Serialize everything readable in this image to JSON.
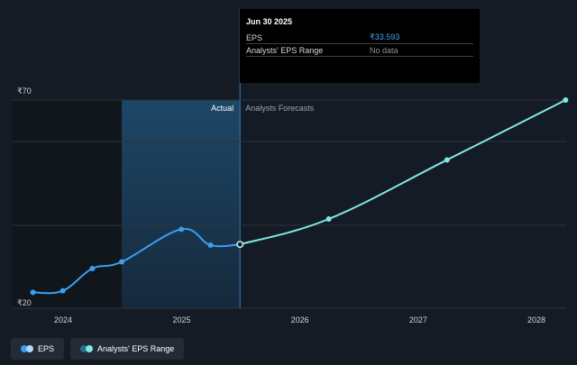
{
  "chart_data": {
    "type": "line",
    "y_tick_labels": [
      "₹70",
      "₹20"
    ],
    "ylim": [
      20,
      70
    ],
    "x_ticks": [
      "2024",
      "2025",
      "2026",
      "2027",
      "2028"
    ],
    "region_labels": {
      "actual": "Actual",
      "forecast": "Analysts Forecasts"
    },
    "series": [
      {
        "name": "EPS",
        "color": "#3ba0f3",
        "points": [
          {
            "x": "2023-09-30",
            "y": 21.5
          },
          {
            "x": "2023-12-31",
            "y": 21.9
          },
          {
            "x": "2024-03-31",
            "y": 27.5
          },
          {
            "x": "2024-06-30",
            "y": 29.2
          },
          {
            "x": "2024-12-31",
            "y": 37.4
          },
          {
            "x": "2025-03-31",
            "y": 33.4
          },
          {
            "x": "2025-06-30",
            "y": 33.593
          }
        ]
      },
      {
        "name": "EPS Forecast",
        "color": "#7fe8e4",
        "points": [
          {
            "x": "2025-06-30",
            "y": 33.593
          },
          {
            "x": "2026-03-31",
            "y": 40.0
          },
          {
            "x": "2027-03-31",
            "y": 54.9
          },
          {
            "x": "2028-03-31",
            "y": 70.0
          }
        ]
      }
    ],
    "grid": true
  },
  "tooltip": {
    "date": "Jun 30 2025",
    "eps_label": "EPS",
    "eps_value": "₹33.593",
    "range_label": "Analysts' EPS Range",
    "range_value": "No data"
  },
  "legend": {
    "eps_label": "EPS",
    "range_label": "Analysts' EPS Range",
    "eps_colors": [
      "#3ba0f3",
      "#b4d9fa"
    ],
    "range_colors": [
      "#2a6f8a",
      "#7fe8e4"
    ]
  }
}
